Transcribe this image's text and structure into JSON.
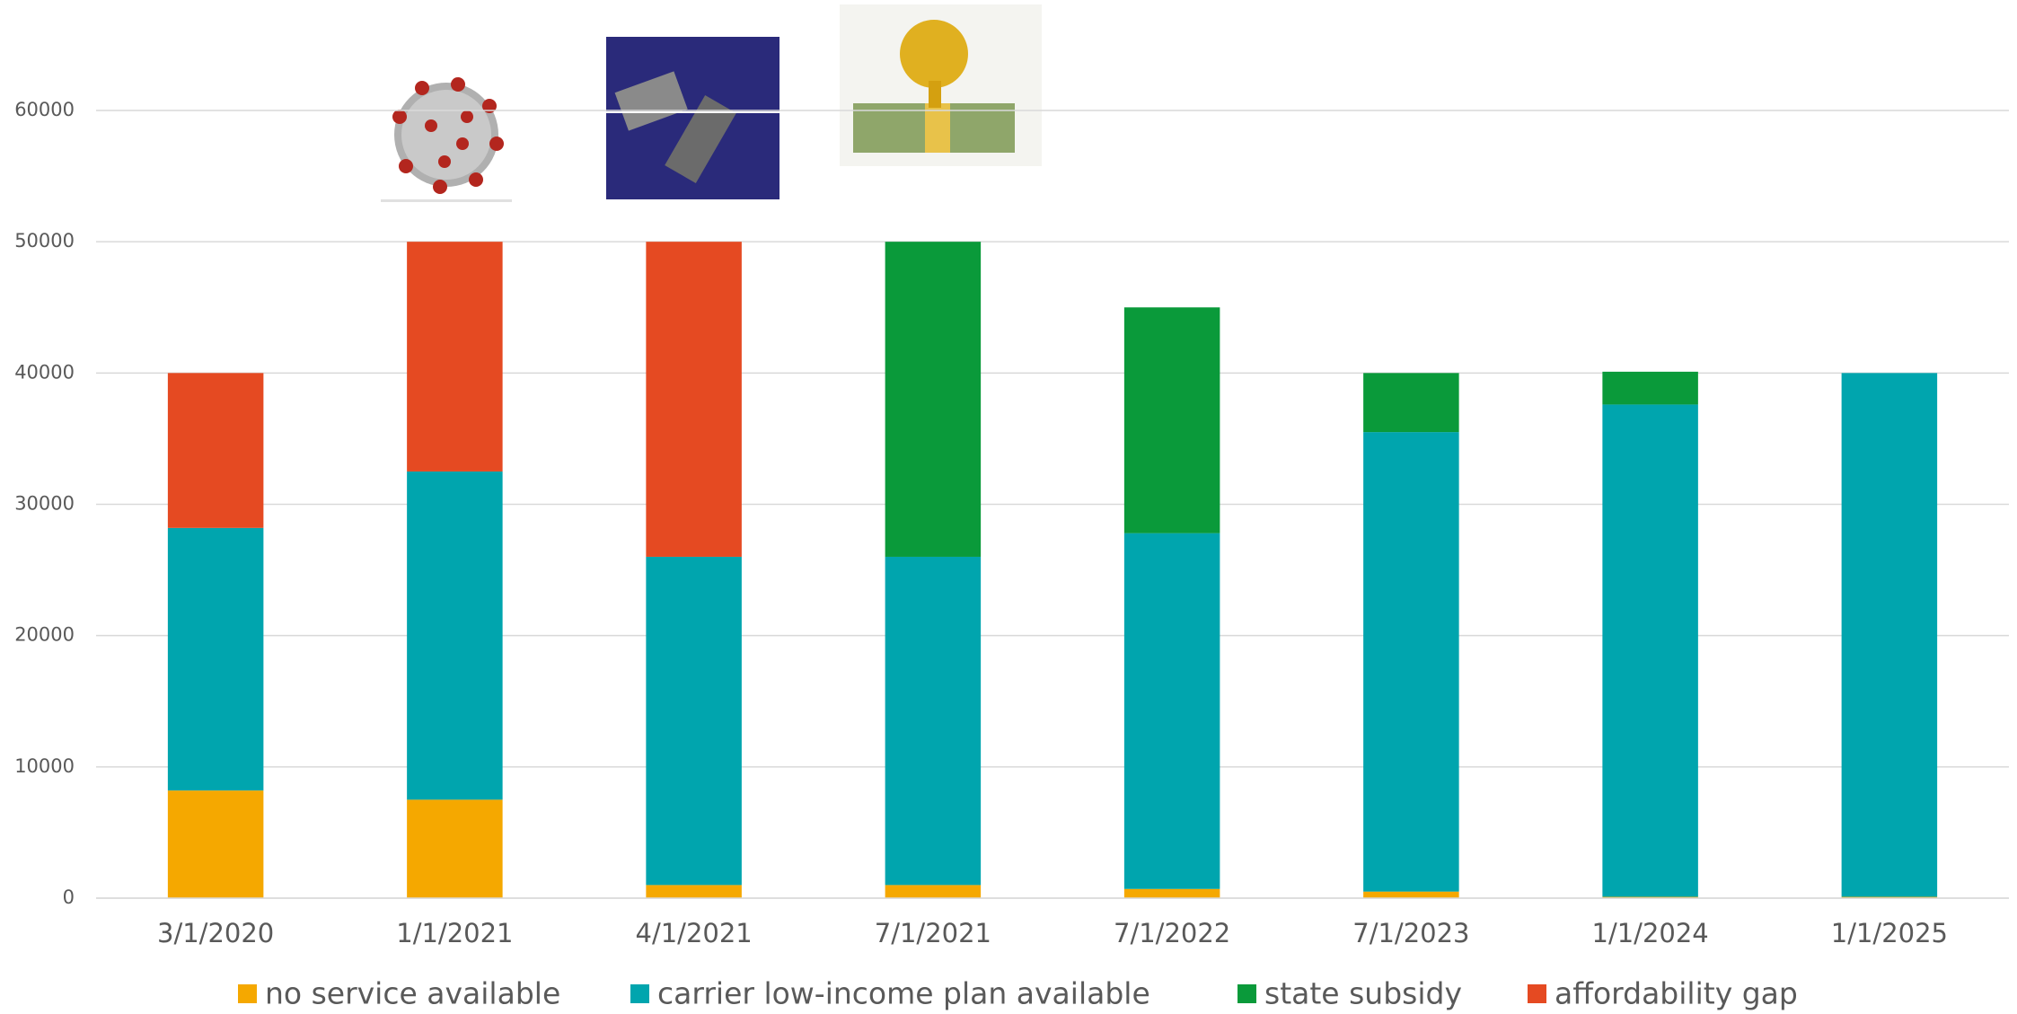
{
  "chart_data": {
    "type": "stacked_bar",
    "categories": [
      "3/1/2020",
      "1/1/2021",
      "4/1/2021",
      "7/1/2021",
      "7/1/2022",
      "7/1/2023",
      "1/1/2024",
      "1/1/2025"
    ],
    "series": [
      {
        "name": "no service available",
        "color": "#f5a800",
        "values": [
          8200,
          7500,
          1000,
          1000,
          700,
          500,
          100,
          100
        ]
      },
      {
        "name": "carrier low-income plan available",
        "color": "#00a5ae",
        "values": [
          20000,
          25000,
          25000,
          25000,
          27100,
          35000,
          37500,
          39900
        ]
      },
      {
        "name": "state subsidy",
        "color": "#0a9a3a",
        "values": [
          0,
          0,
          0,
          24000,
          17200,
          4500,
          2500,
          0
        ]
      },
      {
        "name": "affordability gap",
        "color": "#e54a22",
        "values": [
          11800,
          17500,
          24000,
          0,
          0,
          0,
          0,
          0
        ]
      }
    ],
    "ylim": [
      0,
      60000
    ],
    "yticks": [
      0,
      10000,
      20000,
      30000,
      40000,
      50000,
      60000
    ],
    "grid": true,
    "legend": "bottom"
  }
}
